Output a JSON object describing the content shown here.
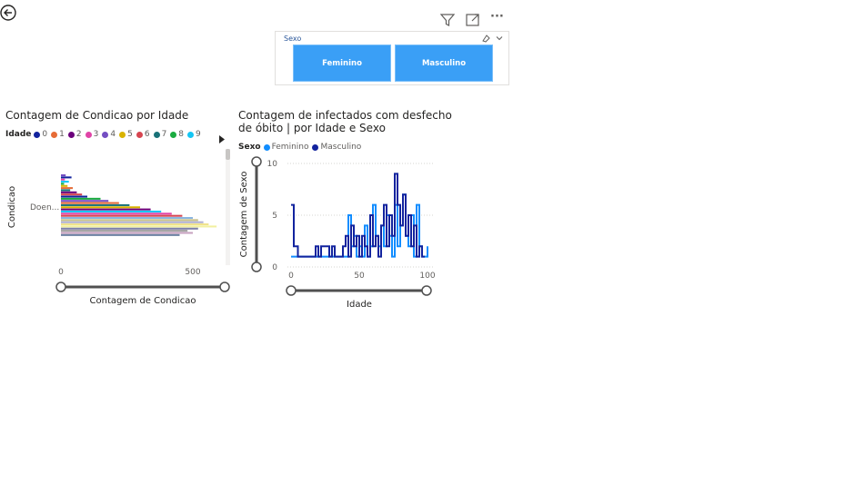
{
  "toolbar": {
    "icons": [
      "back-arrow-icon",
      "filter-icon",
      "focus-mode-icon",
      "more-options-icon"
    ],
    "more_label": "···"
  },
  "slicer": {
    "title": "Sexo",
    "options": [
      "Feminino",
      "Masculino"
    ],
    "accent": "#3a9ff6"
  },
  "chart1": {
    "title": "Contagem de Condicao por Idade",
    "legend_title": "Idade",
    "legend_items": [
      {
        "label": "0",
        "color": "#12239e"
      },
      {
        "label": "1",
        "color": "#e66c37"
      },
      {
        "label": "2",
        "color": "#6b007b"
      },
      {
        "label": "3",
        "color": "#e044a7"
      },
      {
        "label": "4",
        "color": "#744ec2"
      },
      {
        "label": "5",
        "color": "#d9b300"
      },
      {
        "label": "6",
        "color": "#d64550"
      },
      {
        "label": "7",
        "color": "#197278"
      },
      {
        "label": "8",
        "color": "#1aab40"
      },
      {
        "label": "9",
        "color": "#15c6f4"
      }
    ],
    "ylabel": "Condicao",
    "xlabel": "Contagem de Condicao",
    "category_label": "Doen...",
    "x_ticks": [
      "0",
      "500"
    ]
  },
  "chart2": {
    "title_line1": "Contagem de infectados com desfecho",
    "title_line2": "de óbito | por Idade e Sexo",
    "legend_title": "Sexo",
    "legend_items": [
      {
        "label": "Feminino",
        "color": "#118dff"
      },
      {
        "label": "Masculino",
        "color": "#12239e"
      }
    ],
    "ylabel": "Contagem de Sexo",
    "xlabel": "Idade",
    "x_ticks": [
      "0",
      "50",
      "100"
    ],
    "y_ticks": [
      "0",
      "5",
      "10"
    ]
  },
  "chart_data": [
    {
      "type": "bar",
      "orientation": "horizontal",
      "title": "Contagem de Condicao por Idade",
      "xlabel": "Contagem de Condicao",
      "ylabel": "Condicao",
      "categories": [
        "Doen..."
      ],
      "xlim": [
        0,
        600
      ],
      "legend": "top",
      "bar_values": [
        18,
        40,
        15,
        30,
        12,
        25,
        45,
        35,
        60,
        80,
        100,
        150,
        180,
        220,
        260,
        300,
        340,
        380,
        420,
        460,
        500,
        520,
        540,
        560,
        590,
        520,
        480,
        500,
        450
      ],
      "bar_colors": [
        "#744ec2",
        "#12239e",
        "#e044a7",
        "#15c6f4",
        "#1aab40",
        "#d9b300",
        "#e66c37",
        "#197278",
        "#6b007b",
        "#d64550",
        "#12239e",
        "#1aab40",
        "#744ec2",
        "#e66c37",
        "#197278",
        "#d9b300",
        "#6b007b",
        "#15c6f4",
        "#e044a7",
        "#d64550",
        "#8ab5e0",
        "#c9c18a",
        "#b0b0d0",
        "#f0e28a",
        "#f2f0a0",
        "#7d7fa8",
        "#a0a0a0",
        "#c7a2c0",
        "#6a7fa0"
      ]
    },
    {
      "type": "line",
      "title": "Contagem de infectados com desfecho de óbito | por Idade e Sexo",
      "xlabel": "Idade",
      "ylabel": "Contagem de Sexo",
      "xlim": [
        0,
        100
      ],
      "ylim": [
        0,
        10
      ],
      "grid": true,
      "legend": "top",
      "series": [
        {
          "name": "Feminino",
          "color": "#118dff",
          "x": [
            0,
            5,
            10,
            15,
            20,
            25,
            30,
            35,
            40,
            42,
            44,
            46,
            48,
            50,
            52,
            54,
            56,
            58,
            60,
            62,
            64,
            66,
            68,
            70,
            72,
            74,
            76,
            78,
            80,
            82,
            84,
            86,
            88,
            90,
            92,
            94,
            96,
            98,
            100
          ],
          "y": [
            1,
            1,
            1,
            1,
            1,
            1,
            1,
            1,
            1,
            5,
            2,
            3,
            1,
            2,
            1,
            4,
            1,
            2,
            6,
            3,
            2,
            4,
            2,
            5,
            3,
            1,
            6,
            2,
            4,
            7,
            3,
            2,
            5,
            1,
            6,
            2,
            1,
            1,
            2
          ]
        },
        {
          "name": "Masculino",
          "color": "#12239e",
          "x": [
            0,
            1,
            2,
            3,
            5,
            8,
            10,
            15,
            18,
            20,
            22,
            25,
            28,
            30,
            32,
            35,
            38,
            40,
            42,
            44,
            46,
            48,
            50,
            52,
            54,
            56,
            58,
            60,
            62,
            64,
            66,
            68,
            70,
            72,
            74,
            76,
            78,
            80,
            82,
            84,
            86,
            88,
            90,
            92,
            94,
            96,
            98
          ],
          "y": [
            6,
            6,
            2,
            2,
            1,
            1,
            1,
            1,
            2,
            1,
            2,
            2,
            1,
            2,
            1,
            1,
            2,
            3,
            1,
            4,
            2,
            3,
            1,
            3,
            2,
            1,
            5,
            2,
            3,
            1,
            4,
            6,
            2,
            5,
            3,
            9,
            6,
            4,
            7,
            3,
            5,
            2,
            4,
            1,
            2,
            1,
            1
          ]
        }
      ]
    }
  ]
}
